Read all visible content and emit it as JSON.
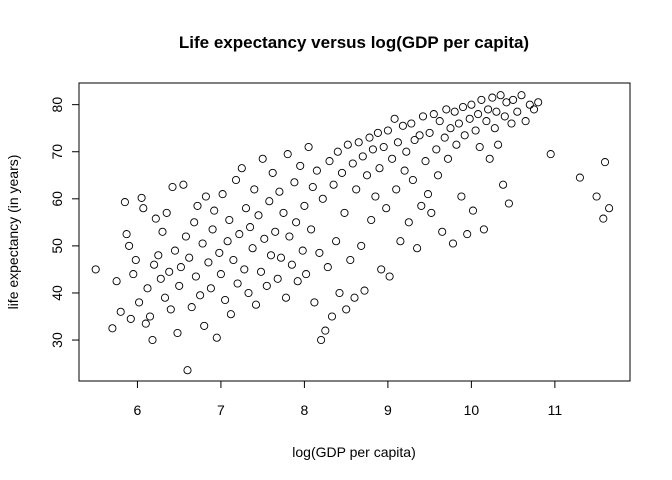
{
  "chart_data": {
    "type": "scatter",
    "title": "Life expectancy versus log(GDP per capita)",
    "xlabel": "log(GDP per capita)",
    "ylabel": "life expectancy (in years)",
    "xlim": [
      5.3,
      11.9
    ],
    "ylim": [
      21.3,
      84.6
    ],
    "x_ticks": [
      "6",
      "7",
      "8",
      "9",
      "10",
      "11"
    ],
    "y_ticks": [
      "30",
      "40",
      "50",
      "60",
      "70",
      "80"
    ],
    "grid": false,
    "legend": "none",
    "marker": "open-circle",
    "marker_color": "#000000",
    "points": [
      [
        5.5,
        45
      ],
      [
        5.7,
        32.5
      ],
      [
        5.75,
        42.5
      ],
      [
        5.8,
        36
      ],
      [
        5.85,
        59.3
      ],
      [
        5.87,
        52.5
      ],
      [
        5.9,
        50
      ],
      [
        5.92,
        34.5
      ],
      [
        5.95,
        44
      ],
      [
        5.98,
        47
      ],
      [
        6.02,
        38
      ],
      [
        6.05,
        60.2
      ],
      [
        6.07,
        58
      ],
      [
        6.1,
        33.5
      ],
      [
        6.12,
        41
      ],
      [
        6.15,
        35
      ],
      [
        6.18,
        30
      ],
      [
        6.2,
        46
      ],
      [
        6.22,
        55.8
      ],
      [
        6.25,
        48
      ],
      [
        6.28,
        43
      ],
      [
        6.3,
        53
      ],
      [
        6.33,
        39
      ],
      [
        6.35,
        57
      ],
      [
        6.38,
        44.5
      ],
      [
        6.4,
        36.5
      ],
      [
        6.42,
        62.5
      ],
      [
        6.45,
        49
      ],
      [
        6.48,
        31.5
      ],
      [
        6.5,
        41.5
      ],
      [
        6.52,
        45.5
      ],
      [
        6.55,
        63
      ],
      [
        6.58,
        52
      ],
      [
        6.6,
        23.6
      ],
      [
        6.62,
        47.5
      ],
      [
        6.65,
        37
      ],
      [
        6.68,
        55
      ],
      [
        6.7,
        43.5
      ],
      [
        6.72,
        58.5
      ],
      [
        6.75,
        39.5
      ],
      [
        6.78,
        50.5
      ],
      [
        6.8,
        33
      ],
      [
        6.82,
        60.5
      ],
      [
        6.85,
        46.5
      ],
      [
        6.88,
        41
      ],
      [
        6.9,
        53.5
      ],
      [
        6.92,
        57.5
      ],
      [
        6.95,
        30.5
      ],
      [
        6.98,
        48.5
      ],
      [
        7.0,
        44
      ],
      [
        7.02,
        61
      ],
      [
        7.05,
        38.5
      ],
      [
        7.08,
        51
      ],
      [
        7.1,
        55.5
      ],
      [
        7.12,
        35.5
      ],
      [
        7.15,
        47
      ],
      [
        7.18,
        64
      ],
      [
        7.2,
        42
      ],
      [
        7.22,
        52.5
      ],
      [
        7.25,
        66.5
      ],
      [
        7.28,
        45
      ],
      [
        7.3,
        58
      ],
      [
        7.33,
        40
      ],
      [
        7.35,
        54
      ],
      [
        7.38,
        49.5
      ],
      [
        7.4,
        62
      ],
      [
        7.42,
        37.5
      ],
      [
        7.45,
        56.5
      ],
      [
        7.48,
        44.5
      ],
      [
        7.5,
        68.5
      ],
      [
        7.52,
        51.5
      ],
      [
        7.55,
        41.5
      ],
      [
        7.58,
        59.5
      ],
      [
        7.6,
        48
      ],
      [
        7.62,
        65.5
      ],
      [
        7.65,
        53
      ],
      [
        7.68,
        43
      ],
      [
        7.7,
        61.5
      ],
      [
        7.72,
        47.5
      ],
      [
        7.75,
        57
      ],
      [
        7.78,
        39
      ],
      [
        7.8,
        69.5
      ],
      [
        7.82,
        52
      ],
      [
        7.85,
        46
      ],
      [
        7.88,
        63.5
      ],
      [
        7.9,
        55
      ],
      [
        7.92,
        42.5
      ],
      [
        7.95,
        67
      ],
      [
        7.98,
        49
      ],
      [
        8.0,
        58.5
      ],
      [
        8.02,
        44
      ],
      [
        8.05,
        71
      ],
      [
        8.08,
        53.5
      ],
      [
        8.1,
        62.5
      ],
      [
        8.12,
        38
      ],
      [
        8.15,
        66
      ],
      [
        8.18,
        48.5
      ],
      [
        8.2,
        30
      ],
      [
        8.22,
        60
      ],
      [
        8.25,
        32
      ],
      [
        8.28,
        45.5
      ],
      [
        8.3,
        68
      ],
      [
        8.33,
        35
      ],
      [
        8.35,
        63
      ],
      [
        8.38,
        51
      ],
      [
        8.4,
        70
      ],
      [
        8.42,
        40
      ],
      [
        8.45,
        65.5
      ],
      [
        8.48,
        57
      ],
      [
        8.5,
        36.5
      ],
      [
        8.52,
        71.5
      ],
      [
        8.55,
        47
      ],
      [
        8.58,
        67.5
      ],
      [
        8.6,
        39
      ],
      [
        8.62,
        62
      ],
      [
        8.65,
        72
      ],
      [
        8.68,
        50
      ],
      [
        8.7,
        69
      ],
      [
        8.72,
        40.5
      ],
      [
        8.75,
        65
      ],
      [
        8.78,
        73
      ],
      [
        8.8,
        55.5
      ],
      [
        8.82,
        70.5
      ],
      [
        8.85,
        60.5
      ],
      [
        8.88,
        74
      ],
      [
        8.9,
        66.5
      ],
      [
        8.92,
        45
      ],
      [
        8.95,
        71
      ],
      [
        8.98,
        58
      ],
      [
        9.0,
        74.5
      ],
      [
        9.02,
        43.5
      ],
      [
        9.05,
        68.5
      ],
      [
        9.08,
        77
      ],
      [
        9.1,
        62
      ],
      [
        9.12,
        72
      ],
      [
        9.15,
        51
      ],
      [
        9.18,
        75.5
      ],
      [
        9.2,
        66
      ],
      [
        9.22,
        70
      ],
      [
        9.25,
        55
      ],
      [
        9.28,
        76
      ],
      [
        9.3,
        64
      ],
      [
        9.32,
        72.5
      ],
      [
        9.35,
        49.5
      ],
      [
        9.38,
        73.5
      ],
      [
        9.4,
        58.5
      ],
      [
        9.42,
        77.5
      ],
      [
        9.45,
        68
      ],
      [
        9.48,
        61
      ],
      [
        9.5,
        74
      ],
      [
        9.52,
        57
      ],
      [
        9.55,
        78
      ],
      [
        9.58,
        70.5
      ],
      [
        9.6,
        65
      ],
      [
        9.62,
        76.5
      ],
      [
        9.65,
        53
      ],
      [
        9.68,
        73
      ],
      [
        9.7,
        79
      ],
      [
        9.72,
        68.5
      ],
      [
        9.75,
        75
      ],
      [
        9.78,
        50.5
      ],
      [
        9.8,
        78.5
      ],
      [
        9.82,
        71.5
      ],
      [
        9.85,
        76
      ],
      [
        9.88,
        60.5
      ],
      [
        9.9,
        79.5
      ],
      [
        9.92,
        73.5
      ],
      [
        9.95,
        52.5
      ],
      [
        9.98,
        77
      ],
      [
        10.0,
        80
      ],
      [
        10.02,
        57.5
      ],
      [
        10.05,
        74.5
      ],
      [
        10.08,
        78
      ],
      [
        10.1,
        71
      ],
      [
        10.12,
        81
      ],
      [
        10.15,
        53.5
      ],
      [
        10.18,
        76.5
      ],
      [
        10.2,
        79
      ],
      [
        10.22,
        68.5
      ],
      [
        10.25,
        81.5
      ],
      [
        10.28,
        75
      ],
      [
        10.3,
        78.5
      ],
      [
        10.32,
        71.5
      ],
      [
        10.35,
        82
      ],
      [
        10.38,
        63
      ],
      [
        10.4,
        77.5
      ],
      [
        10.42,
        80.5
      ],
      [
        10.45,
        59
      ],
      [
        10.48,
        76
      ],
      [
        10.5,
        81
      ],
      [
        10.55,
        78.5
      ],
      [
        10.6,
        82
      ],
      [
        10.65,
        76.5
      ],
      [
        10.7,
        80
      ],
      [
        10.75,
        79
      ],
      [
        10.8,
        80.5
      ],
      [
        10.95,
        69.5
      ],
      [
        11.3,
        64.5
      ],
      [
        11.5,
        60.5
      ],
      [
        11.58,
        55.8
      ],
      [
        11.6,
        67.8
      ],
      [
        11.65,
        58
      ]
    ]
  }
}
